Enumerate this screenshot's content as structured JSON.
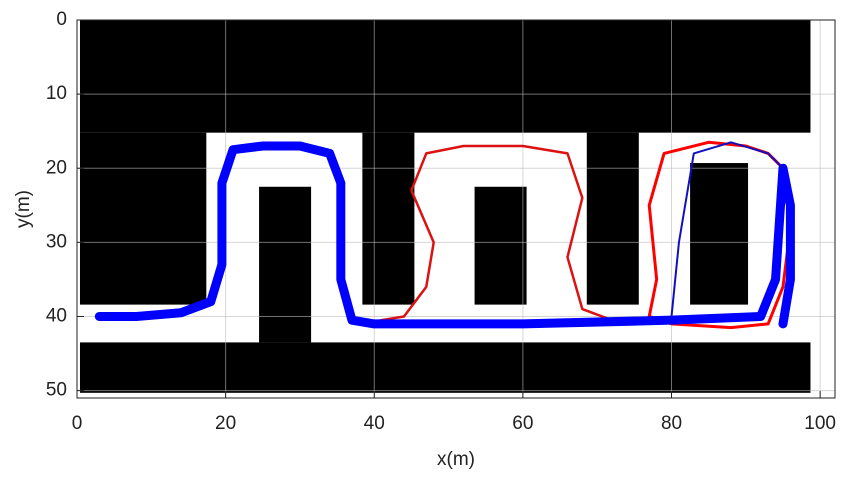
{
  "chart_data": {
    "type": "line",
    "xlabel": "x(m)",
    "ylabel": "y(m)",
    "xlim": [
      0,
      102
    ],
    "ylim": [
      0,
      51
    ],
    "y_reversed": true,
    "xticks": [
      0,
      20,
      40,
      60,
      80,
      100
    ],
    "yticks": [
      0,
      10,
      20,
      30,
      40,
      50
    ],
    "grid": true,
    "obstacle_color": "#000000",
    "obstacles": [
      [
        0.4,
        0,
        98.7,
        15.2
      ],
      [
        0.4,
        15.2,
        17.4,
        38.4
      ],
      [
        24.5,
        22.5,
        31.5,
        43.5
      ],
      [
        38.4,
        15.2,
        45.4,
        38.4
      ],
      [
        53.5,
        22.5,
        60.5,
        38.4
      ],
      [
        68.6,
        15.2,
        75.6,
        38.4
      ],
      [
        82.5,
        19.3,
        90.3,
        38.4
      ],
      [
        0.4,
        43.5,
        98.7,
        50.3
      ]
    ],
    "series": [
      {
        "color": "#dd1111",
        "width": 2.5,
        "x": [
          38,
          44,
          47,
          48,
          45,
          47,
          52,
          60,
          66,
          68,
          66,
          68,
          72
        ],
        "values": [
          41,
          40,
          36,
          30,
          23,
          18,
          17,
          17,
          18,
          24,
          32,
          39,
          40.5
        ]
      },
      {
        "color": "#ff0000",
        "width": 3,
        "x": [
          77,
          78,
          77,
          79,
          85,
          90,
          93,
          95,
          96,
          95,
          93,
          88,
          80,
          77
        ],
        "values": [
          40,
          35,
          25,
          18,
          16.5,
          17,
          18,
          20,
          28,
          36,
          41,
          41.5,
          41,
          40
        ]
      },
      {
        "color": "#0000ff",
        "width": 9,
        "x": [
          3,
          8,
          14,
          18,
          19.5,
          19.5,
          21,
          25,
          30,
          34,
          35.5,
          35.5,
          37,
          40,
          60,
          80,
          92,
          94,
          95,
          96,
          96,
          95
        ],
        "values": [
          40,
          40,
          39.5,
          38,
          33,
          22,
          17.5,
          17,
          17,
          18,
          22,
          35,
          40.5,
          41,
          41,
          40.5,
          40,
          35,
          20,
          25,
          35,
          41
        ]
      },
      {
        "color": "#1010c0",
        "width": 2,
        "x": [
          80,
          81,
          83,
          88,
          93,
          95
        ],
        "values": [
          40,
          30,
          18,
          16.5,
          18,
          20
        ]
      }
    ]
  }
}
